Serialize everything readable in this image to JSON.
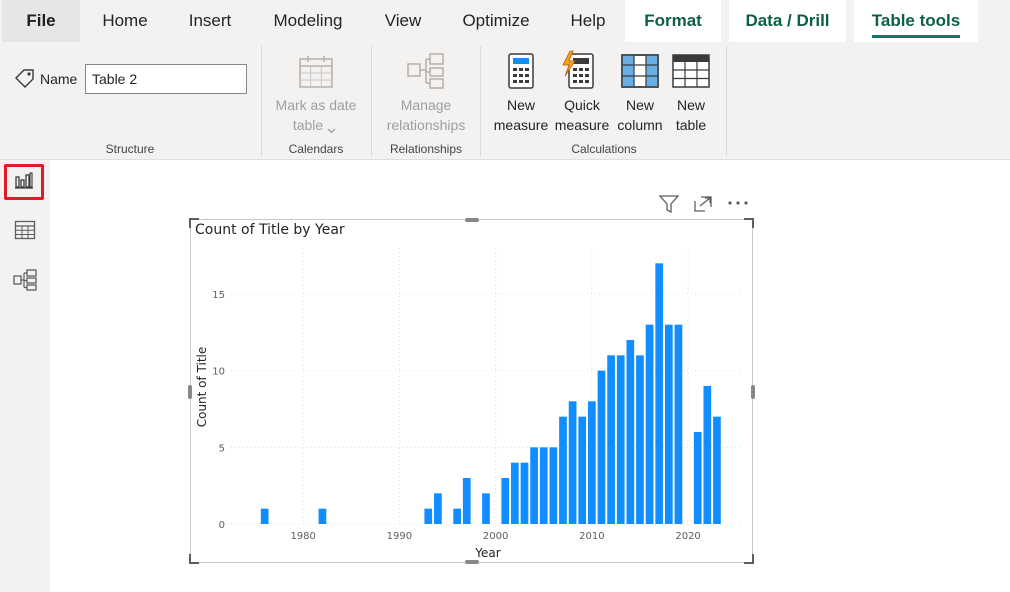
{
  "tabs": {
    "file": "File",
    "home": "Home",
    "insert": "Insert",
    "modeling": "Modeling",
    "view": "View",
    "optimize": "Optimize",
    "help": "Help",
    "format": "Format",
    "data_drill": "Data / Drill",
    "table_tools": "Table tools"
  },
  "ribbon": {
    "structure": {
      "name_label": "Name",
      "name_value": "Table 2",
      "group_label": "Structure"
    },
    "calendars": {
      "mark_line1": "Mark as date",
      "mark_line2": "table",
      "group_label": "Calendars"
    },
    "relationships": {
      "manage_line1": "Manage",
      "manage_line2": "relationships",
      "group_label": "Relationships"
    },
    "calculations": {
      "new_measure_line1": "New",
      "new_measure_line2": "measure",
      "quick_measure_line1": "Quick",
      "quick_measure_line2": "measure",
      "new_column_line1": "New",
      "new_column_line2": "column",
      "new_table_line1": "New",
      "new_table_line2": "table",
      "group_label": "Calculations"
    }
  },
  "left_rail": {
    "icons": [
      "report-view-icon",
      "table-view-icon",
      "model-view-icon"
    ],
    "active": "report-view-icon"
  },
  "colors": {
    "bar": "#118dff",
    "active_tab_underline": "#117865",
    "highlight_border": "#e01b24"
  },
  "chart_data": {
    "type": "bar",
    "title": "Count of Title by Year",
    "xlabel": "Year",
    "ylabel": "Count of Title",
    "xlim": [
      1972.5,
      2025.5
    ],
    "ylim": [
      0,
      18
    ],
    "x_ticks": [
      1980,
      1990,
      2000,
      2010,
      2020
    ],
    "y_ticks": [
      0,
      5,
      10,
      15
    ],
    "grid": true,
    "series": [
      {
        "x": [
          1976,
          1982,
          1993,
          1994,
          1996,
          1997,
          1999,
          2001,
          2002,
          2003,
          2004,
          2005,
          2006,
          2007,
          2008,
          2009,
          2010,
          2011,
          2012,
          2013,
          2014,
          2015,
          2016,
          2017,
          2018,
          2019,
          2021,
          2022,
          2023
        ],
        "values": [
          1,
          1,
          1,
          2,
          1,
          3,
          2,
          3,
          4,
          4,
          5,
          5,
          5,
          7,
          8,
          7,
          8,
          10,
          11,
          11,
          12,
          11,
          13,
          17,
          13,
          13,
          6,
          9,
          7
        ]
      }
    ]
  }
}
